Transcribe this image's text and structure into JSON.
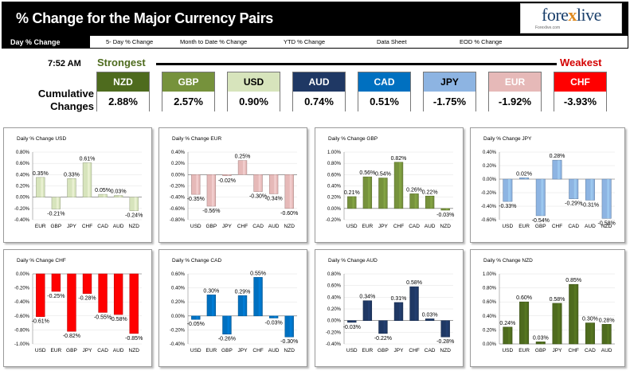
{
  "header": {
    "title": "% Change for the Major Currency Pairs",
    "logo_text_a": "fore",
    "logo_text_x": "x",
    "logo_text_b": "live",
    "logo_tagline": "Forexlive.com"
  },
  "nav": {
    "tabs": [
      "Day % Change",
      "5- Day % Change",
      "Month to Date % Change",
      "YTD % Change",
      "Data Sheet",
      "EOD % Change"
    ]
  },
  "summary": {
    "time": "7:52 AM",
    "strongest": "Strongest",
    "weakest": "Weakest",
    "cumulative_label_1": "Cumulative",
    "cumulative_label_2": "Changes",
    "currencies": [
      {
        "code": "NZD",
        "value": "2.88%",
        "color": "#4e6b1e",
        "text": "#ffffff"
      },
      {
        "code": "GBP",
        "value": "2.57%",
        "color": "#76923c",
        "text": "#ffffff"
      },
      {
        "code": "USD",
        "value": "0.90%",
        "color": "#d7e4bc",
        "text": "#000000"
      },
      {
        "code": "AUD",
        "value": "0.74%",
        "color": "#1f3864",
        "text": "#ffffff"
      },
      {
        "code": "CAD",
        "value": "0.51%",
        "color": "#0070c0",
        "text": "#ffffff"
      },
      {
        "code": "JPY",
        "value": "-1.75%",
        "color": "#8db4e2",
        "text": "#000000"
      },
      {
        "code": "EUR",
        "value": "-1.92%",
        "color": "#e6b9b8",
        "text": "#ffffff"
      },
      {
        "code": "CHF",
        "value": "-3.93%",
        "color": "#ff0000",
        "text": "#ffffff"
      }
    ]
  },
  "chart_data": [
    {
      "type": "bar",
      "title": "Daily % Change USD",
      "categories": [
        "EUR",
        "GBP",
        "JPY",
        "CHF",
        "CAD",
        "AUD",
        "NZD"
      ],
      "values": [
        0.35,
        -0.21,
        0.33,
        0.61,
        0.05,
        0.03,
        -0.24
      ],
      "labels": [
        "0.35%",
        "-0.21%",
        "0.33%",
        "0.61%",
        "0.05%",
        "0.03%",
        "-0.24%"
      ],
      "yticks": [
        "0.80%",
        "0.60%",
        "0.40%",
        "0.20%",
        "0.00%",
        "-0.20%",
        "-0.40%"
      ],
      "ylim": [
        -0.4,
        0.8
      ],
      "color": "#d7e4bc"
    },
    {
      "type": "bar",
      "title": "Daily % Change EUR",
      "categories": [
        "USD",
        "GBP",
        "JPY",
        "CHF",
        "CAD",
        "AUD",
        "NZD"
      ],
      "values": [
        -0.35,
        -0.56,
        -0.02,
        0.25,
        -0.3,
        -0.34,
        -0.6
      ],
      "labels": [
        "-0.35%",
        "-0.56%",
        "-0.02%",
        "0.25%",
        "-0.30%",
        "-0.34%",
        "-0.60%"
      ],
      "yticks": [
        "0.40%",
        "0.20%",
        "0.00%",
        "-0.20%",
        "-0.40%",
        "-0.60%",
        "-0.80%"
      ],
      "ylim": [
        -0.8,
        0.4
      ],
      "color": "#e6b9b8"
    },
    {
      "type": "bar",
      "title": "Daily % Change GBP",
      "categories": [
        "USD",
        "EUR",
        "JPY",
        "CHF",
        "CAD",
        "AUD",
        "NZD"
      ],
      "values": [
        0.21,
        0.56,
        0.54,
        0.82,
        0.26,
        0.22,
        -0.03
      ],
      "labels": [
        "0.21%",
        "0.56%",
        "0.54%",
        "0.82%",
        "0.26%",
        "0.22%",
        "-0.03%"
      ],
      "yticks": [
        "1.00%",
        "0.80%",
        "0.60%",
        "0.40%",
        "0.20%",
        "0.00%",
        "-0.20%"
      ],
      "ylim": [
        -0.2,
        1.0
      ],
      "color": "#76923c"
    },
    {
      "type": "bar",
      "title": "Daily % Change JPY",
      "categories": [
        "USD",
        "EUR",
        "GBP",
        "CHF",
        "CAD",
        "AUD",
        "NZD"
      ],
      "values": [
        -0.33,
        0.02,
        -0.54,
        0.28,
        -0.29,
        -0.31,
        -0.58
      ],
      "labels": [
        "-0.33%",
        "0.02%",
        "-0.54%",
        "0.28%",
        "-0.29%",
        "-0.31%",
        "-0.58%"
      ],
      "yticks": [
        "0.40%",
        "0.20%",
        "0.00%",
        "-0.20%",
        "-0.40%",
        "-0.60%"
      ],
      "ylim": [
        -0.6,
        0.4
      ],
      "color": "#8db4e2"
    },
    {
      "type": "bar",
      "title": "Daily % Change CHF",
      "categories": [
        "USD",
        "EUR",
        "GBP",
        "JPY",
        "CAD",
        "AUD",
        "NZD"
      ],
      "values": [
        -0.61,
        -0.25,
        -0.82,
        -0.28,
        -0.55,
        -0.58,
        -0.85
      ],
      "labels": [
        "-0.61%",
        "-0.25%",
        "-0.82%",
        "-0.28%",
        "-0.55%",
        "-0.58%",
        "-0.85%"
      ],
      "yticks": [
        "0.00%",
        "-0.20%",
        "-0.40%",
        "-0.60%",
        "-0.80%",
        "-1.00%"
      ],
      "ylim": [
        -1.0,
        0.0
      ],
      "color": "#ff0000"
    },
    {
      "type": "bar",
      "title": "Daily % Change CAD",
      "categories": [
        "USD",
        "EUR",
        "GBP",
        "JPY",
        "CHF",
        "AUD",
        "NZD"
      ],
      "values": [
        -0.05,
        0.3,
        -0.26,
        0.29,
        0.55,
        -0.03,
        -0.3
      ],
      "labels": [
        "-0.05%",
        "0.30%",
        "-0.26%",
        "0.29%",
        "0.55%",
        "-0.03%",
        "-0.30%"
      ],
      "yticks": [
        "0.60%",
        "0.40%",
        "0.20%",
        "0.00%",
        "-0.20%",
        "-0.40%"
      ],
      "ylim": [
        -0.4,
        0.6
      ],
      "color": "#0070c0"
    },
    {
      "type": "bar",
      "title": "Daily % Change AUD",
      "categories": [
        "USD",
        "EUR",
        "GBP",
        "JPY",
        "CHF",
        "CAD",
        "NZD"
      ],
      "values": [
        -0.03,
        0.34,
        -0.22,
        0.31,
        0.58,
        0.03,
        -0.28
      ],
      "labels": [
        "-0.03%",
        "0.34%",
        "-0.22%",
        "0.31%",
        "0.58%",
        "0.03%",
        "-0.28%"
      ],
      "yticks": [
        "0.80%",
        "0.60%",
        "0.40%",
        "0.20%",
        "0.00%",
        "-0.20%",
        "-0.40%"
      ],
      "ylim": [
        -0.4,
        0.8
      ],
      "color": "#1f3864"
    },
    {
      "type": "bar",
      "title": "Daily % Change NZD",
      "categories": [
        "USD",
        "EUR",
        "GBP",
        "JPY",
        "CHF",
        "CAD",
        "AUD"
      ],
      "values": [
        0.24,
        0.6,
        0.03,
        0.58,
        0.85,
        0.3,
        0.28
      ],
      "labels": [
        "0.24%",
        "0.60%",
        "0.03%",
        "0.58%",
        "0.85%",
        "0.30%",
        "0.28%"
      ],
      "yticks": [
        "1.00%",
        "0.80%",
        "0.60%",
        "0.40%",
        "0.20%",
        "0.00%"
      ],
      "ylim": [
        0.0,
        1.0
      ],
      "color": "#4e6b1e"
    }
  ]
}
